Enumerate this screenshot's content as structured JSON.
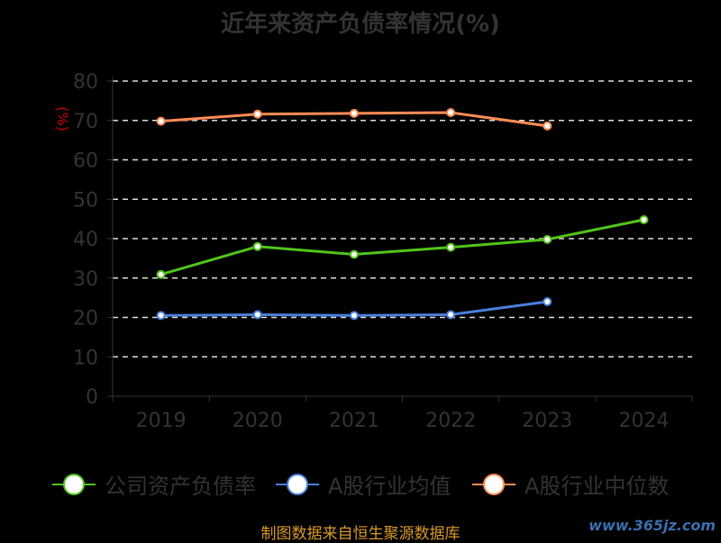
{
  "chart_data": {
    "type": "line",
    "title": "近年来资产负债率情况(%)",
    "ylabel": "(%)",
    "categories": [
      "2019",
      "2020",
      "2021",
      "2022",
      "2023",
      "2024"
    ],
    "ylim": [
      0,
      80
    ],
    "yticks": [
      0,
      10,
      20,
      30,
      40,
      50,
      60,
      70,
      80
    ],
    "grid": true,
    "legend_position": "bottom",
    "series": [
      {
        "name": "公司资产负债率",
        "color": "#52c41a",
        "values": [
          30.9,
          38.0,
          36.0,
          37.8,
          39.8,
          44.8
        ]
      },
      {
        "name": "A股行业均值",
        "color": "#4a7fdc",
        "values": [
          20.5,
          20.7,
          20.5,
          20.7,
          24.0,
          null
        ]
      },
      {
        "name": "A股行业中位数",
        "color": "#ff8c55",
        "values": [
          69.8,
          71.6,
          71.8,
          72.0,
          68.6,
          null
        ]
      }
    ]
  },
  "footer": "制图数据来自恒生聚源数据库",
  "watermark": "www.365jz.com"
}
